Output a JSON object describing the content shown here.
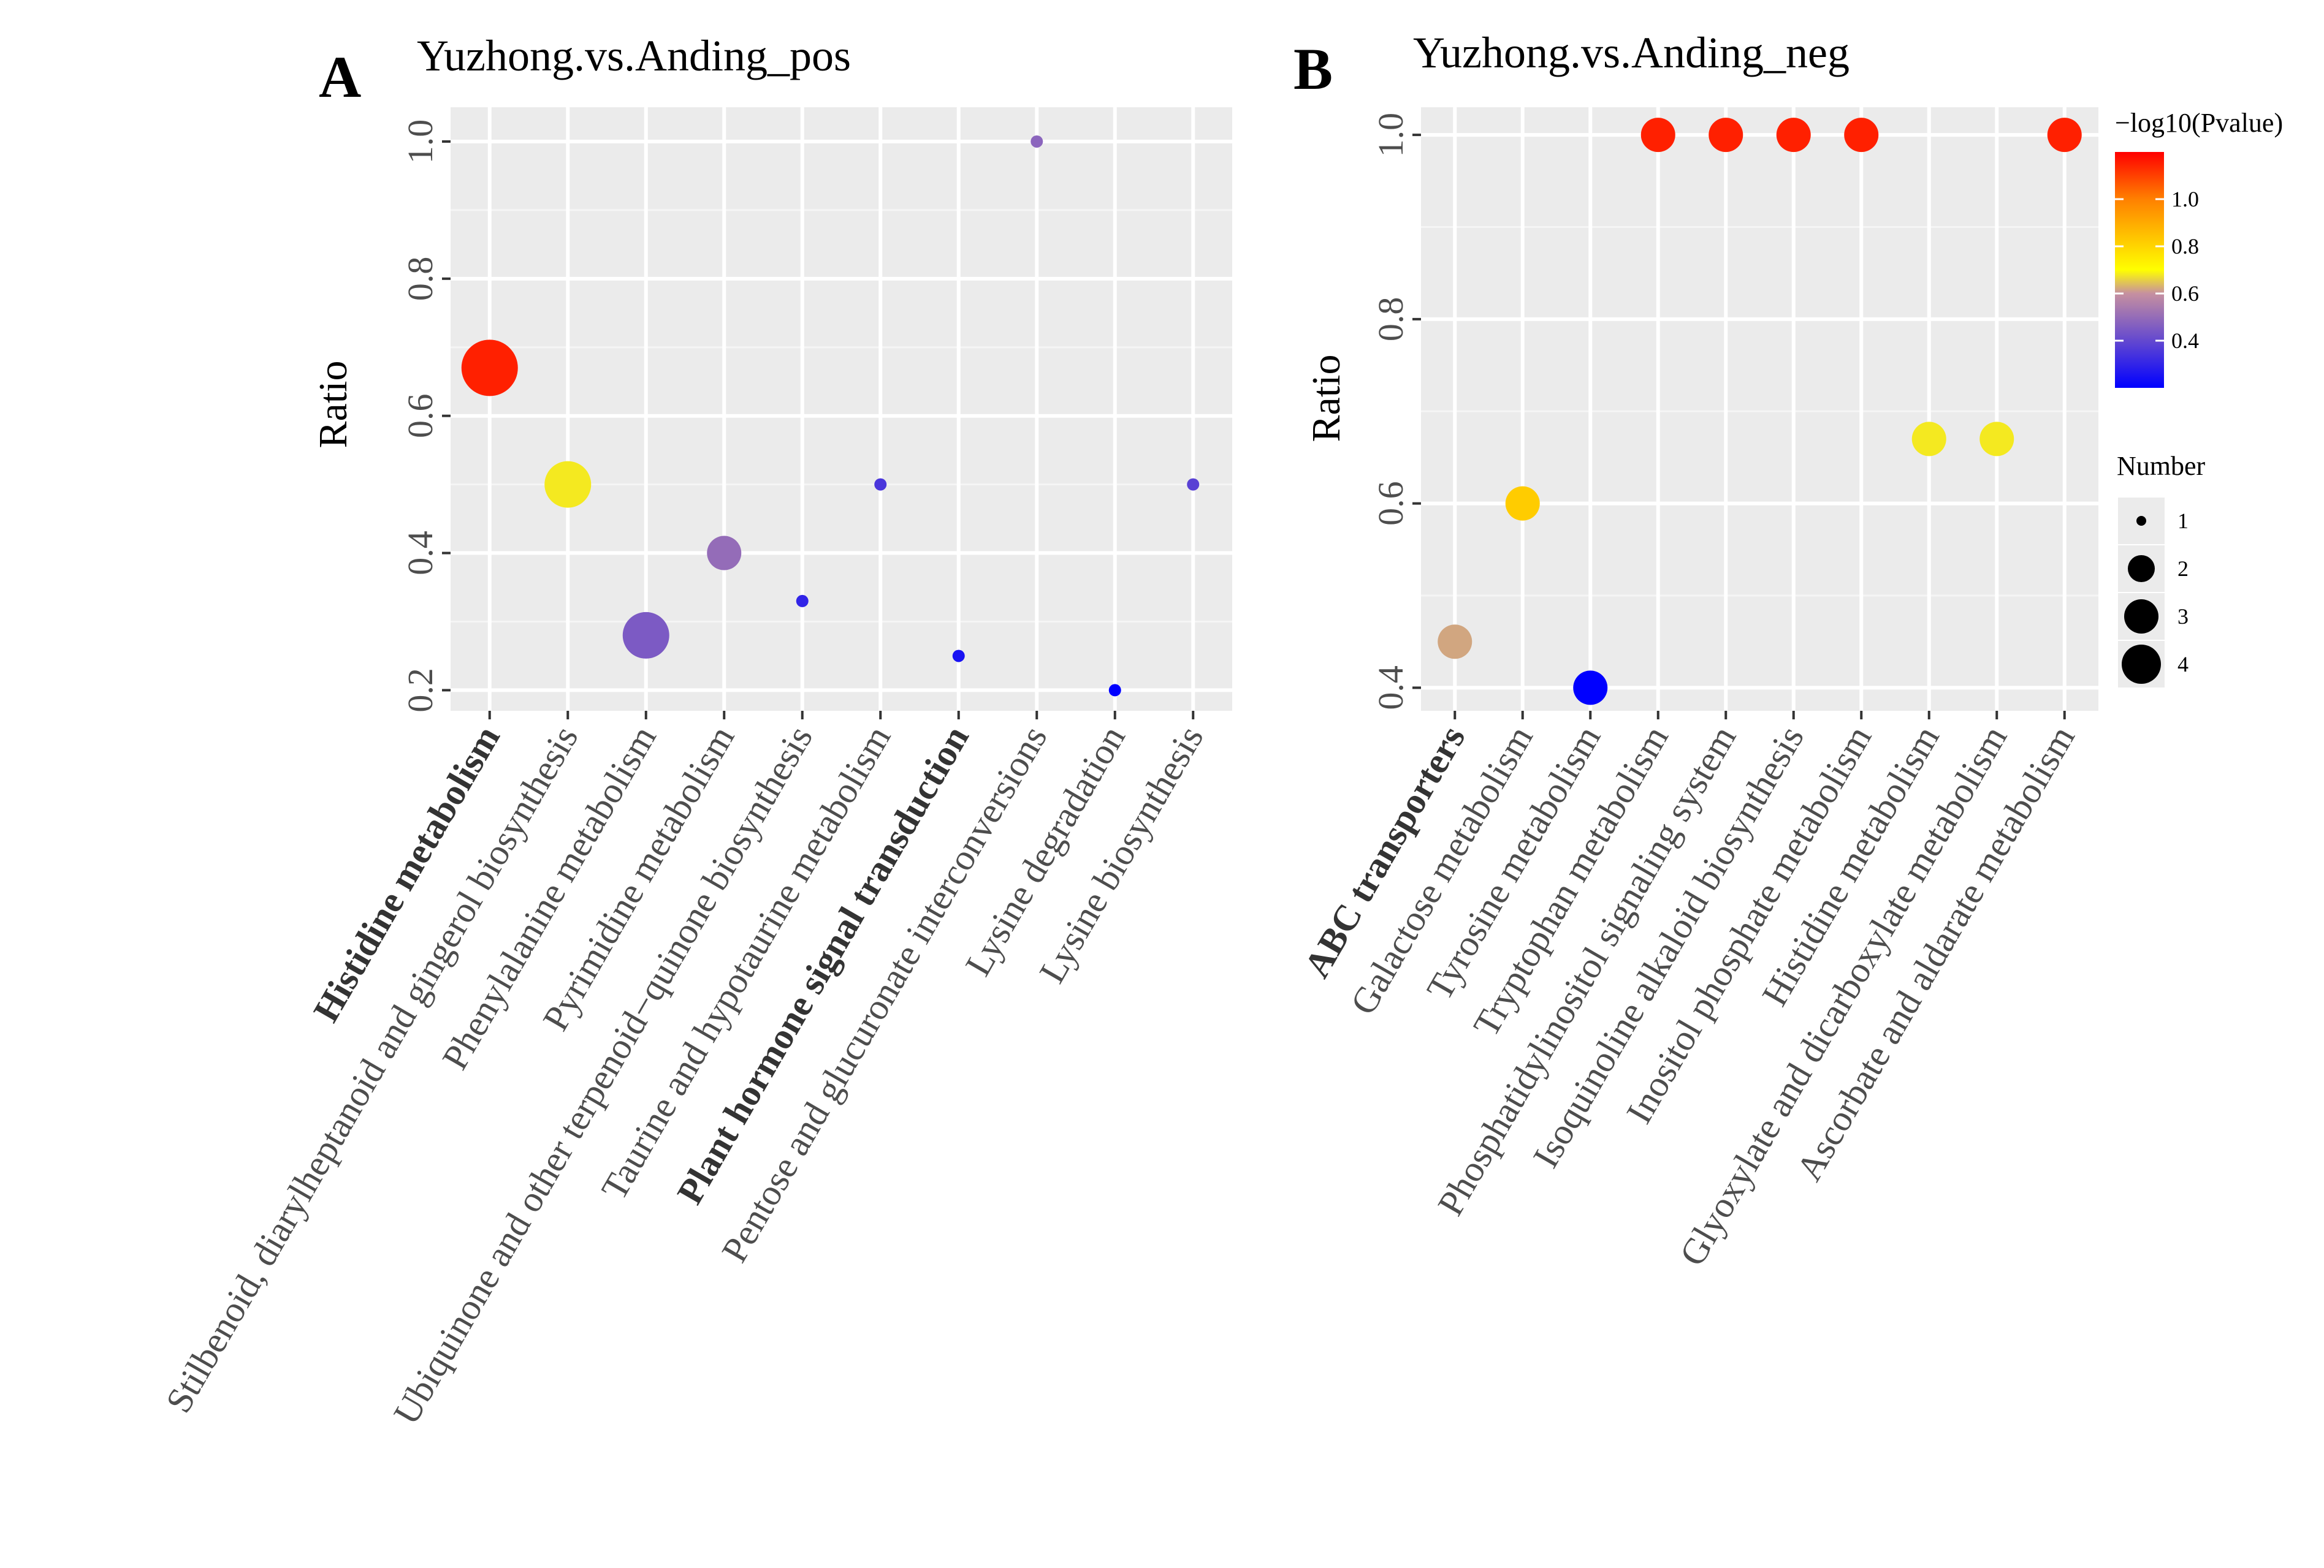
{
  "chart_data": [
    {
      "type": "scatter",
      "panel_label": "A",
      "title": "Yuzhong.vs.Anding_pos",
      "xlabel": "",
      "ylabel": "Ratio",
      "ylim": [
        0.17,
        1.05
      ],
      "yticks": [
        0.2,
        0.4,
        0.6,
        0.8,
        1.0
      ],
      "ytick_labels": [
        "0.2",
        "0.4",
        "0.6",
        "0.8",
        "1.0"
      ],
      "categories": [
        "Histidine metabolism",
        "Stilbenoid, diarylheptanoid and gingerol biosynthesis",
        "Phenylalanine metabolism",
        "Pyrimidine metabolism",
        "Ubiquinone and other terpenoid−quinone biosynthesis",
        "Taurine and hypotaurine metabolism",
        "Plant hormone signal transduction",
        "Pentose and glucuronate interconversions",
        "Lysine degradation",
        "Lysine biosynthesis"
      ],
      "bold_categories": [
        "Histidine metabolism",
        "Plant hormone signal transduction"
      ],
      "ratio": [
        0.67,
        0.5,
        0.28,
        0.4,
        0.33,
        0.5,
        0.25,
        1.0,
        0.2,
        0.5
      ],
      "number": [
        4,
        3,
        3,
        2,
        1,
        1,
        1,
        1,
        1,
        1
      ],
      "neg_log10_pvalue": [
        1.15,
        0.68,
        0.45,
        0.5,
        0.3,
        0.35,
        0.25,
        0.48,
        0.15,
        0.38
      ],
      "grid": true
    },
    {
      "type": "scatter",
      "panel_label": "B",
      "title": "Yuzhong.vs.Anding_neg",
      "xlabel": "",
      "ylabel": "Ratio",
      "ylim": [
        0.375,
        1.03
      ],
      "yticks": [
        0.4,
        0.6,
        0.8,
        1.0
      ],
      "ytick_labels": [
        "0.4",
        "0.6",
        "0.8",
        "1.0"
      ],
      "categories": [
        "ABC transporters",
        "Galactose metabolism",
        "Tyrosine metabolism",
        "Tryptophan metabolism",
        "Phosphatidylinositol signaling system",
        "Isoquinoline alkaloid biosynthesis",
        "Inositol phosphate metabolism",
        "Histidine metabolism",
        "Glyoxylate and dicarboxylate metabolism",
        "Ascorbate and aldarate metabolism"
      ],
      "bold_categories": [
        "ABC transporters"
      ],
      "ratio": [
        0.45,
        0.6,
        0.4,
        1.0,
        1.0,
        1.0,
        1.0,
        0.67,
        0.67,
        1.0
      ],
      "number": [
        2,
        2,
        2,
        2,
        2,
        2,
        2,
        2,
        2,
        2
      ],
      "neg_log10_pvalue": [
        0.62,
        0.82,
        0.2,
        1.15,
        1.15,
        1.15,
        1.15,
        0.68,
        0.68,
        1.15
      ],
      "grid": true
    }
  ],
  "legend": {
    "color_title": "−log10(Pvalue)",
    "color_ticks": [
      1.0,
      0.8,
      0.6,
      0.4
    ],
    "color_tick_labels": [
      "1.0",
      "0.8",
      "0.6",
      "0.4"
    ],
    "color_range": [
      0.2,
      1.2
    ],
    "colors": {
      "low": "#0000ff",
      "mid": "#ffff00",
      "high": "#ff0000"
    },
    "size_title": "Number",
    "size_values": [
      1,
      2,
      3,
      4
    ],
    "size_labels": [
      "1",
      "2",
      "3",
      "4"
    ]
  },
  "colors": {
    "panel_bg": "#ebebeb",
    "grid_major": "#ffffff",
    "axis_text": "#4d4d4d"
  }
}
